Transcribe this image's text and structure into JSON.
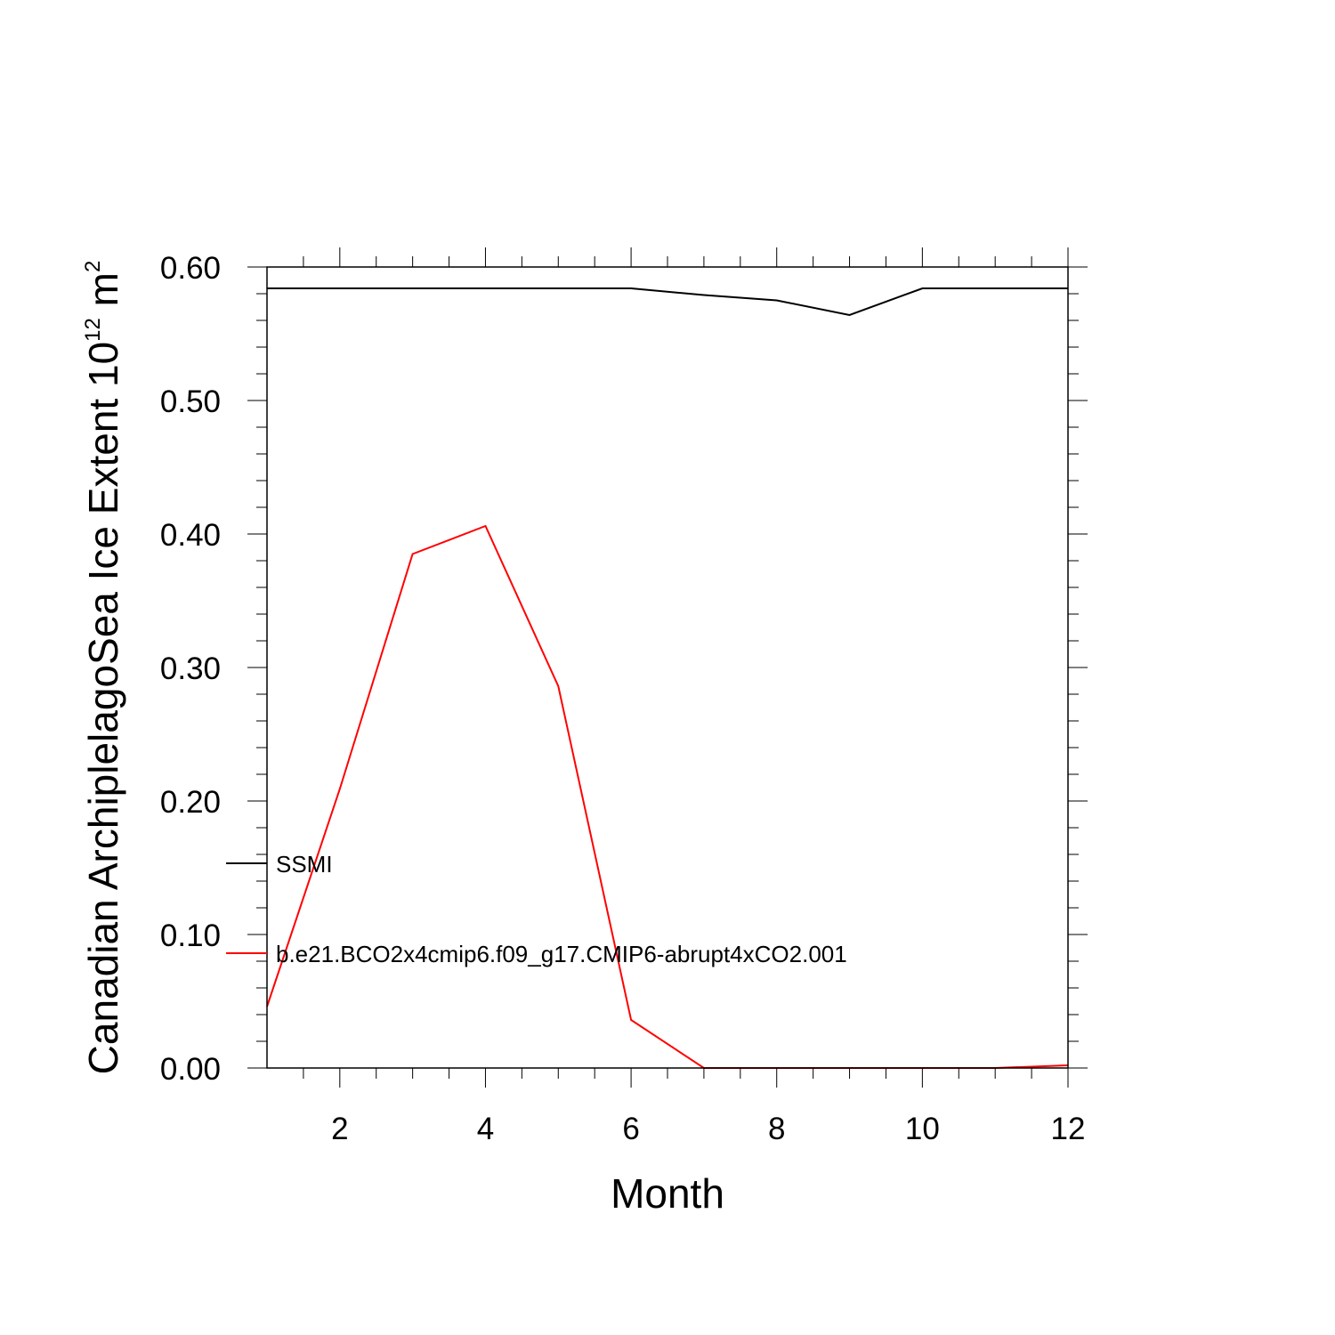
{
  "chart_data": {
    "type": "line",
    "xlabel": "Month",
    "ylabel": {
      "text": "Canadian ArchiplelagoSea Ice Extent 10",
      "superscript": "12",
      "unit": " m",
      "unit_superscript": "2"
    },
    "xlim": [
      1,
      12
    ],
    "ylim": [
      0,
      0.6
    ],
    "x_ticks": [
      2,
      4,
      6,
      8,
      10,
      12
    ],
    "y_ticks": [
      "0.00",
      "0.10",
      "0.20",
      "0.30",
      "0.40",
      "0.50",
      "0.60"
    ],
    "grid": false,
    "legend_position": "left, inside plot",
    "x": [
      1,
      2,
      3,
      4,
      5,
      6,
      7,
      8,
      9,
      10,
      11,
      12
    ],
    "series": [
      {
        "name": "SSMI",
        "color": "#000000",
        "values": [
          0.584,
          0.584,
          0.584,
          0.584,
          0.584,
          0.584,
          0.579,
          0.575,
          0.564,
          0.584,
          0.584,
          0.584
        ]
      },
      {
        "name": "b.e21.BCO2x4cmip6.f09_g17.CMIP6-abrupt4xCO2.001",
        "color": "#ff0000",
        "values": [
          0.046,
          0.209,
          0.385,
          0.406,
          0.286,
          0.036,
          0.0,
          0.0,
          0.0,
          0.0,
          0.0,
          0.002
        ]
      }
    ]
  }
}
